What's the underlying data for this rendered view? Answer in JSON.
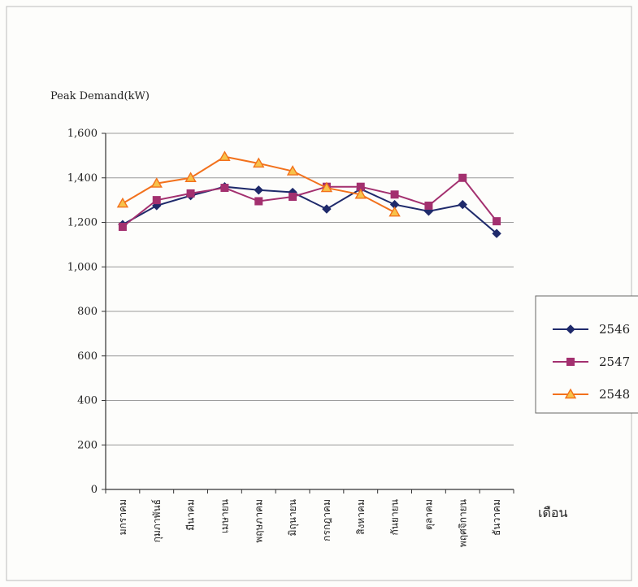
{
  "chart_data": {
    "type": "line",
    "ylabel": "Peak Demand(kW)",
    "xlabel": "เดือน",
    "categories": [
      "มกราคม",
      "กุมภาพันธ์",
      "มีนาคม",
      "เมษายน",
      "พฤษภาคม",
      "มิถุนายน",
      "กรกฎาคม",
      "สิงหาคม",
      "กันยายน",
      "ตุลาคม",
      "พฤศจิกายน",
      "ธันวาคม"
    ],
    "ylim": [
      0,
      1600
    ],
    "yticks": [
      0,
      200,
      400,
      600,
      800,
      1000,
      1200,
      1400,
      1600
    ],
    "ytick_labels": [
      "0",
      "200",
      "400",
      "600",
      "800",
      "1,000",
      "1,200",
      "1,400",
      "1,600"
    ],
    "grid": true,
    "legend_position": "right",
    "series": [
      {
        "name": "2546",
        "color": "#1f2a6b",
        "marker": "diamond",
        "values": [
          1190,
          1275,
          1320,
          1360,
          1345,
          1335,
          1260,
          1350,
          1280,
          1250,
          1280,
          1150
        ]
      },
      {
        "name": "2547",
        "color": "#a3306f",
        "marker": "square",
        "values": [
          1180,
          1300,
          1330,
          1355,
          1295,
          1315,
          1360,
          1360,
          1325,
          1275,
          1400,
          1205
        ]
      },
      {
        "name": "2548",
        "color": "#f2711c",
        "marker": "triangle",
        "marker_fill": "#f7c24a",
        "values": [
          1285,
          1375,
          1400,
          1495,
          1465,
          1430,
          1355,
          1325,
          1245,
          null,
          null,
          null
        ]
      }
    ]
  }
}
